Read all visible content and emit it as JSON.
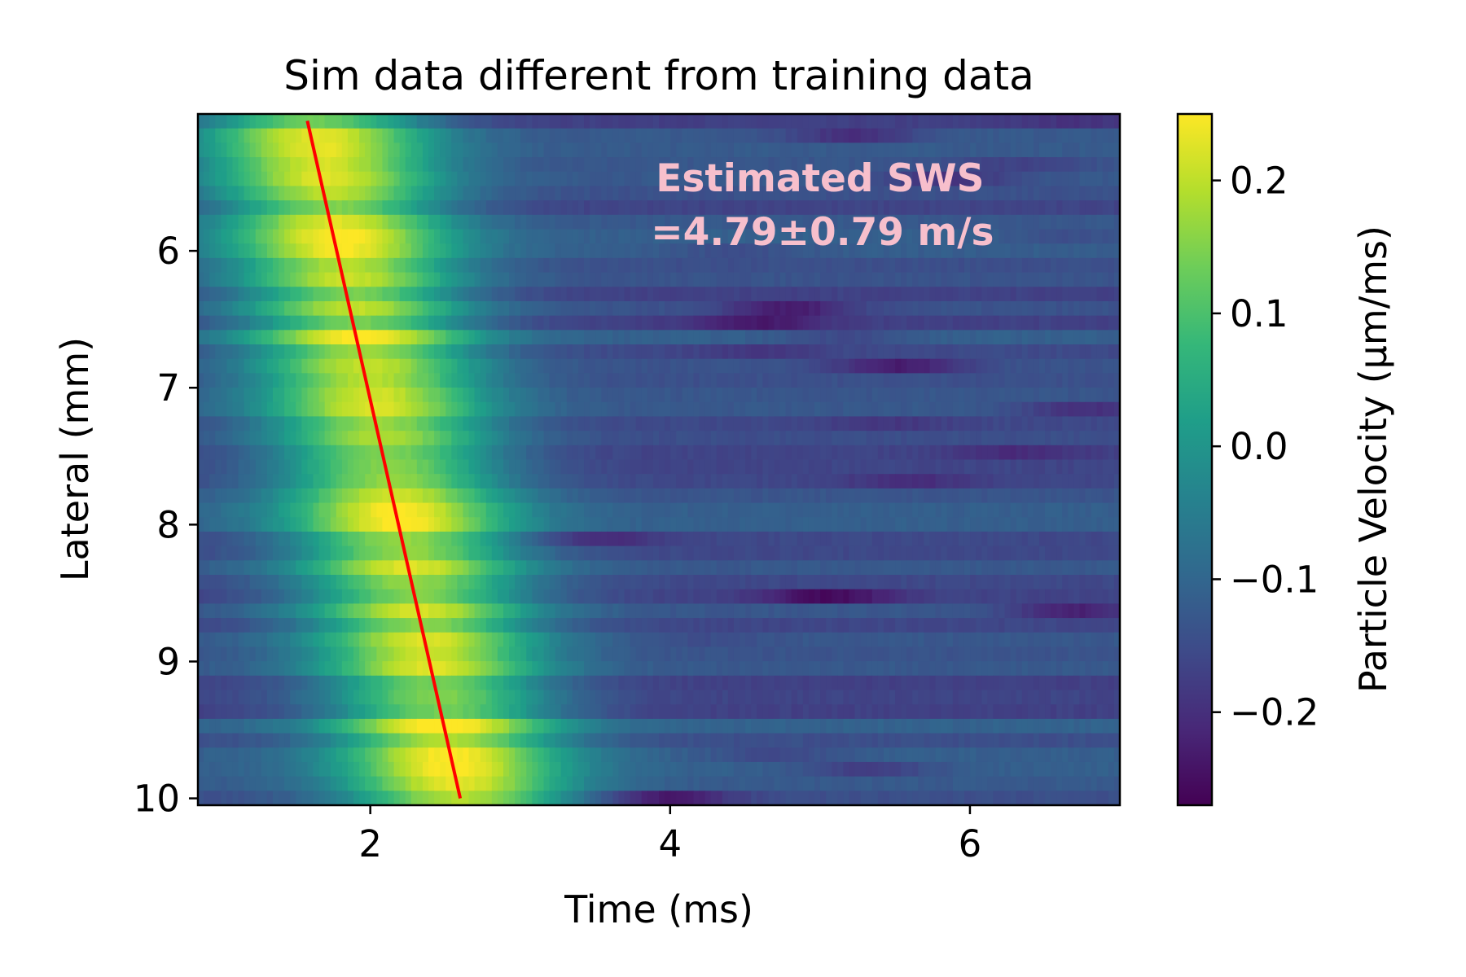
{
  "chart_data": {
    "type": "heatmap",
    "title": "Sim data different from training data",
    "xlabel": "Time (ms)",
    "ylabel": "Lateral (mm)",
    "xlim": [
      0.85,
      7.0
    ],
    "ylim": [
      10.05,
      5.0
    ],
    "x_ticks": [
      2,
      4,
      6
    ],
    "y_ticks": [
      6,
      7,
      8,
      9,
      10
    ],
    "colorbar": {
      "label": "Particle Velocity (μm/ms)",
      "colormap": "viridis",
      "vmin": -0.27,
      "vmax": 0.25,
      "ticks": [
        0.2,
        0.1,
        0.0,
        -0.1,
        -0.2
      ],
      "tick_labels": [
        "0.2",
        "0.1",
        "0.0",
        "−0.1",
        "−0.2"
      ]
    },
    "grid": false,
    "fit_line": {
      "color": "#ff0000",
      "points": [
        [
          1.58,
          5.05
        ],
        [
          2.6,
          10.0
        ]
      ]
    },
    "annotation": {
      "lines": [
        "Estimated SWS",
        "=4.79±0.79 m/s"
      ],
      "color": "#f7bfcc",
      "x": 5.0,
      "y": 5.6
    },
    "heatmap": {
      "rows": 48,
      "cols": 160,
      "lateral_range": [
        5.1,
        10.0
      ],
      "time_range": [
        0.85,
        7.0
      ],
      "wave_peak_time_at_lateral_5": 1.6,
      "wave_peak_time_at_lateral_10": 2.6,
      "peak_velocity": 0.2,
      "background_velocity": -0.14
    }
  }
}
